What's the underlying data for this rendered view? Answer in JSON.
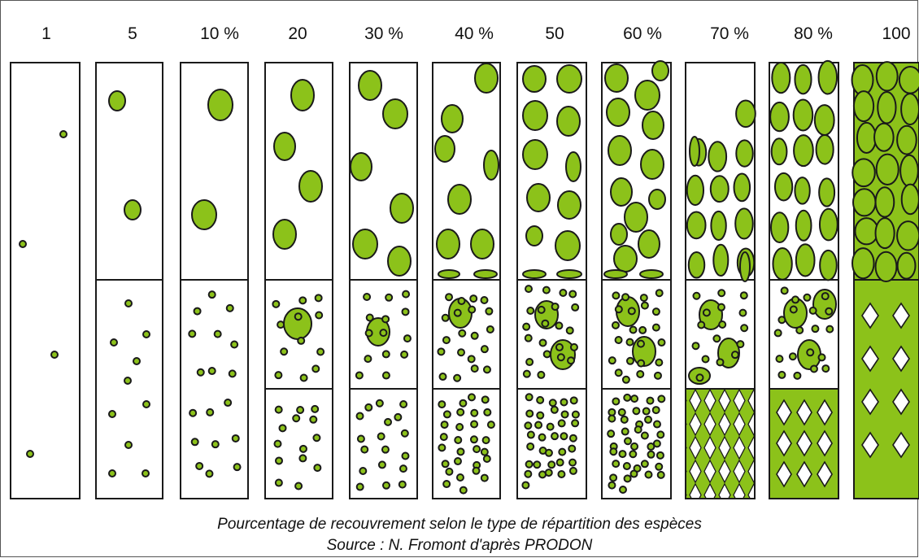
{
  "labels": [
    "1",
    "5",
    "10 %",
    "20",
    "30 %",
    "40 %",
    "50",
    "60 %",
    "70 %",
    "80 %",
    "100"
  ],
  "caption": "Pourcentage de recouvrement selon le type de répartition des espèces",
  "source": "Source : N. Fromont d'après PRODON",
  "colors": {
    "fill": "#8cc21a",
    "stroke": "#1a1a1a",
    "background": "#ffffff"
  },
  "illustration": "plant-cover-percentage-columns"
}
